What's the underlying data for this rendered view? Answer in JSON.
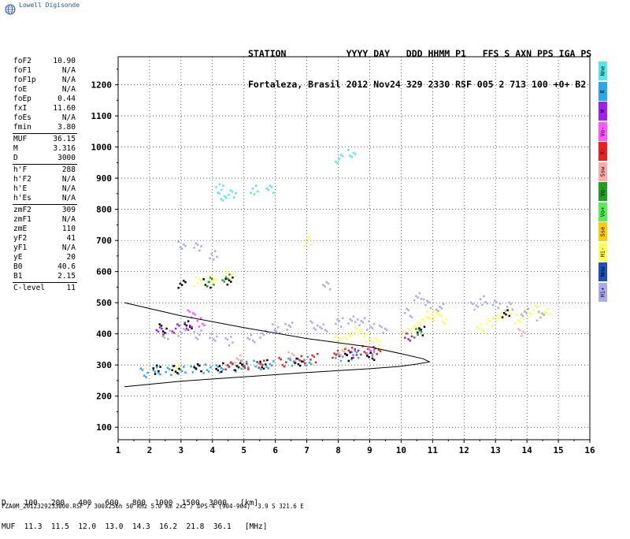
{
  "app": {
    "logo_text": "Lowell Digisonde"
  },
  "header": {
    "line1": "STATION           YYYY DAY   DDD HHMM P1   FFS S AXN PPS IGA PS",
    "line2": "Fortaleza, Brasil 2012 Nov24 329 2330 RSF 005 2 713 100 +0+ B2"
  },
  "params": [
    {
      "label": "foF2",
      "value": "10.90"
    },
    {
      "label": "foF1",
      "value": "N/A"
    },
    {
      "label": "foF1p",
      "value": "N/A"
    },
    {
      "label": "foE",
      "value": "N/A"
    },
    {
      "label": "foEp",
      "value": "0.44"
    },
    {
      "label": "fxI",
      "value": "11.60"
    },
    {
      "label": "foEs",
      "value": "N/A"
    },
    {
      "label": "fmin",
      "value": "3.80"
    },
    {
      "sep": true
    },
    {
      "label": "MUF",
      "value": "36.15"
    },
    {
      "label": "M",
      "value": "3.316"
    },
    {
      "label": "D",
      "value": "3000"
    },
    {
      "sep": true
    },
    {
      "label": "h'F",
      "value": "288"
    },
    {
      "label": "h'F2",
      "value": "N/A"
    },
    {
      "label": "h'E",
      "value": "N/A"
    },
    {
      "label": "h'Es",
      "value": "N/A"
    },
    {
      "sep": true
    },
    {
      "label": "zmF2",
      "value": "309"
    },
    {
      "label": "zmF1",
      "value": "N/A"
    },
    {
      "label": "zmE",
      "value": "110"
    },
    {
      "label": "yF2",
      "value": "41"
    },
    {
      "label": "yF1",
      "value": "N/A"
    },
    {
      "label": "yE",
      "value": "20"
    },
    {
      "label": "B0",
      "value": "40.6"
    },
    {
      "label": "B1",
      "value": "2.15"
    },
    {
      "sep": true
    },
    {
      "label": "C-level",
      "value": "11"
    }
  ],
  "legend": [
    {
      "label": "Nne",
      "color": "#55e8e8"
    },
    {
      "label": "E",
      "color": "#2aa8e8"
    },
    {
      "label": "W",
      "color": "#a020f0"
    },
    {
      "label": "Vo-",
      "color": "#ff55ff"
    },
    {
      "label": "X-",
      "color": "#e82020"
    },
    {
      "label": "Ssw",
      "color": "#ffaaaa"
    },
    {
      "label": "Vo-",
      "color": "#20a020"
    },
    {
      "label": "Vo+",
      "color": "#55ee55"
    },
    {
      "label": "Sse",
      "color": "#ffcc00"
    },
    {
      "label": "Hi-",
      "color": "#ffff55"
    },
    {
      "label": "Nnw",
      "color": "#2050c0"
    },
    {
      "label": "Hi+",
      "color": "#aaaaee"
    }
  ],
  "footer": {
    "line1": "D    100   200   400   600   800  1000  1500  3000   [km]",
    "line2": "MUF  11.3  11.5  12.0  13.0  14.3  16.2  21.8  36.1   [MHz]",
    "file": "FZA0M_2012329233000.RSF / 300x256h 50 kHz 5.0 km 2x2 / DPS-4 (904-904)  3.9 S 321.6 E"
  },
  "chart_data": {
    "type": "scatter",
    "xlim": [
      1,
      16
    ],
    "ylim": [
      60,
      1290
    ],
    "x_ticks": [
      "1",
      "2",
      "3",
      "4",
      "5",
      "6",
      "7",
      "8",
      "9",
      "10",
      "11",
      "12",
      "13",
      "14",
      "15",
      "16"
    ],
    "y_ticks": [
      "100",
      "200",
      "300",
      "400",
      "500",
      "600",
      "700",
      "800",
      "900",
      "1000",
      "1100",
      "1200"
    ],
    "grid": "dotted",
    "profile_curve": [
      [
        1.2,
        230
      ],
      [
        3,
        248
      ],
      [
        5,
        262
      ],
      [
        7,
        276
      ],
      [
        9,
        288
      ],
      [
        10,
        296
      ],
      [
        10.5,
        303
      ],
      [
        10.9,
        310
      ],
      [
        10.7,
        320
      ],
      [
        10,
        336
      ],
      [
        9,
        358
      ],
      [
        7,
        385
      ],
      [
        5,
        420
      ],
      [
        3,
        458
      ],
      [
        1.2,
        500
      ]
    ],
    "traces": [
      {
        "color": "#2aa8e8",
        "points": [
          [
            1.8,
            278
          ],
          [
            2.2,
            282
          ],
          [
            2.6,
            285
          ],
          [
            3.0,
            288
          ],
          [
            3.4,
            289
          ],
          [
            3.8,
            291
          ],
          [
            4.2,
            293
          ],
          [
            4.6,
            296
          ],
          [
            5.0,
            300
          ],
          [
            5.4,
            303
          ],
          [
            5.8,
            306
          ],
          [
            6.5,
            310
          ],
          [
            7.0,
            315
          ],
          [
            8.0,
            330
          ],
          [
            8.5,
            335
          ],
          [
            9.0,
            338
          ]
        ]
      },
      {
        "color": "#e82020",
        "points": [
          [
            4.5,
            298
          ],
          [
            5.0,
            303
          ],
          [
            5.5,
            308
          ],
          [
            6.2,
            312
          ],
          [
            6.8,
            318
          ],
          [
            7.2,
            325
          ],
          [
            7.9,
            340
          ],
          [
            8.3,
            345
          ],
          [
            8.8,
            350
          ],
          [
            9.2,
            352
          ]
        ]
      },
      {
        "color": "#ffff55",
        "points": [
          [
            10.1,
            395
          ],
          [
            10.3,
            410
          ],
          [
            10.5,
            430
          ],
          [
            10.7,
            445
          ],
          [
            10.9,
            460
          ],
          [
            11.1,
            470
          ],
          [
            11.3,
            450
          ],
          [
            12.5,
            420
          ],
          [
            12.8,
            440
          ],
          [
            13.1,
            460
          ],
          [
            13.4,
            470
          ],
          [
            13.7,
            450
          ],
          [
            14.0,
            470
          ],
          [
            14.3,
            480
          ],
          [
            14.6,
            470
          ],
          [
            8.0,
            380
          ],
          [
            8.3,
            400
          ],
          [
            8.6,
            410
          ],
          [
            8.9,
            390
          ],
          [
            9.2,
            380
          ],
          [
            7.0,
            700
          ],
          [
            2.8,
            290
          ],
          [
            3.5,
            570
          ],
          [
            4.0,
            580
          ],
          [
            4.5,
            590
          ]
        ]
      },
      {
        "color": "#aaaaee",
        "points": [
          [
            2.5,
            400
          ],
          [
            3.0,
            410
          ],
          [
            3.5,
            400
          ],
          [
            4.0,
            390
          ],
          [
            4.5,
            380
          ],
          [
            5.2,
            390
          ],
          [
            5.6,
            400
          ],
          [
            6.0,
            420
          ],
          [
            6.4,
            430
          ],
          [
            7.2,
            430
          ],
          [
            7.5,
            420
          ],
          [
            8.0,
            440
          ],
          [
            8.4,
            450
          ],
          [
            8.7,
            440
          ],
          [
            9.0,
            430
          ],
          [
            9.4,
            420
          ],
          [
            10.2,
            470
          ],
          [
            10.5,
            520
          ],
          [
            10.8,
            500
          ],
          [
            11.2,
            490
          ],
          [
            12.3,
            490
          ],
          [
            12.6,
            510
          ],
          [
            13.0,
            500
          ],
          [
            13.4,
            490
          ],
          [
            13.9,
            470
          ],
          [
            14.4,
            460
          ],
          [
            3.0,
            690
          ],
          [
            3.5,
            680
          ],
          [
            4.0,
            655
          ],
          [
            7.6,
            560
          ]
        ]
      },
      {
        "color": "#000000",
        "points": [
          [
            2.2,
            288
          ],
          [
            2.8,
            291
          ],
          [
            3.5,
            292
          ],
          [
            4.2,
            295
          ],
          [
            4.8,
            300
          ],
          [
            5.6,
            305
          ],
          [
            6.7,
            310
          ],
          [
            8.3,
            330
          ],
          [
            9.0,
            333
          ],
          [
            3.0,
            560
          ],
          [
            3.8,
            565
          ],
          [
            4.5,
            575
          ],
          [
            2.4,
            420
          ],
          [
            3.2,
            430
          ],
          [
            10.6,
            412
          ],
          [
            13.3,
            470
          ]
        ]
      },
      {
        "color": "#a020f0",
        "points": [
          [
            2.3,
            415
          ],
          [
            2.8,
            420
          ],
          [
            3.2,
            425
          ],
          [
            8.5,
            340
          ],
          [
            10.2,
            395
          ]
        ]
      },
      {
        "color": "#55e8e8",
        "points": [
          [
            4.3,
            845
          ],
          [
            4.6,
            850
          ],
          [
            5.3,
            865
          ],
          [
            5.8,
            870
          ],
          [
            8.0,
            965
          ],
          [
            8.4,
            980
          ],
          [
            4.2,
            870
          ]
        ]
      },
      {
        "color": "#20a020",
        "points": [
          [
            3.9,
            570
          ],
          [
            4.4,
            580
          ],
          [
            10.5,
            405
          ]
        ]
      },
      {
        "color": "#ff55ff",
        "points": [
          [
            3.3,
            465
          ],
          [
            3.6,
            440
          ],
          [
            9.0,
            345
          ]
        ]
      },
      {
        "color": "#ffaaaa",
        "points": [
          [
            4.8,
            320
          ],
          [
            6.5,
            330
          ],
          [
            8.1,
            350
          ],
          [
            13.8,
            405
          ]
        ]
      }
    ]
  }
}
